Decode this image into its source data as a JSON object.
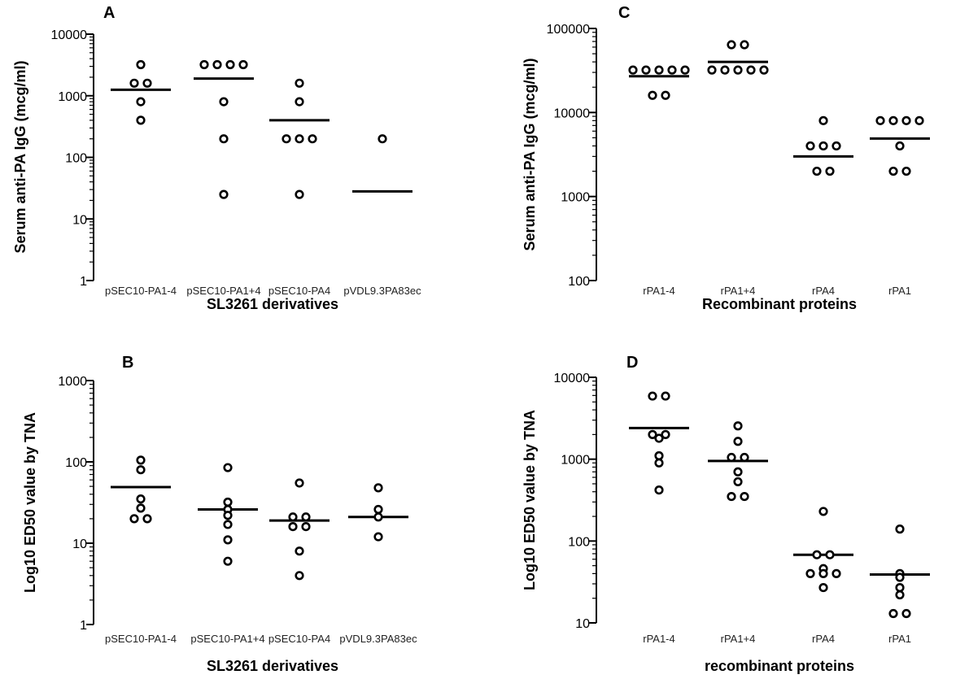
{
  "chart_data": [
    {
      "panel": "A",
      "type": "scatter",
      "ylabel": "Serum anti-PA IgG (mcg/ml)",
      "xlabel": "SL3261 derivatives",
      "yscale": "log",
      "ylim": [
        1,
        10000
      ],
      "yticks": [
        "1",
        "10",
        "100",
        "1000",
        "10000"
      ],
      "categories": [
        "pSEC10-PA1-4",
        "pSEC10-PA1+4",
        "pSEC10-PA4",
        "pVDL9.3PA83ec"
      ],
      "points": [
        [
          3200,
          1600,
          1600,
          800,
          400
        ],
        [
          3200,
          3200,
          3200,
          3200,
          800,
          200,
          25
        ],
        [
          1600,
          800,
          200,
          200,
          200,
          25
        ],
        [
          200
        ]
      ],
      "medians": [
        1250,
        1900,
        400,
        28
      ]
    },
    {
      "panel": "B",
      "type": "scatter",
      "ylabel": "Log10 ED50 value by TNA",
      "xlabel": "SL3261 derivatives",
      "yscale": "log",
      "ylim": [
        1,
        1000
      ],
      "yticks": [
        "1",
        "10",
        "100",
        "1000"
      ],
      "categories": [
        "pSEC10-PA1-4",
        "pSEC10-PA1+4",
        "pSEC10-PA4",
        "pVDL9.3PA83ec"
      ],
      "points": [
        [
          105,
          80,
          35,
          27,
          20,
          20
        ],
        [
          85,
          32,
          26,
          22,
          17,
          11,
          6
        ],
        [
          55,
          21,
          21,
          16,
          16,
          8,
          4
        ],
        [
          48,
          26,
          21,
          12
        ]
      ],
      "medians": [
        49,
        26,
        19,
        21
      ]
    },
    {
      "panel": "C",
      "type": "scatter",
      "ylabel": "Serum anti-PA IgG (mcg/ml)",
      "xlabel": "Recombinant proteins",
      "yscale": "log",
      "ylim": [
        100,
        100000
      ],
      "yticks": [
        "100",
        "1000",
        "10000",
        "100000"
      ],
      "categories": [
        "rPA1-4",
        "rPA1+4",
        "rPA4",
        "rPA1"
      ],
      "points": [
        [
          32000,
          32000,
          32000,
          32000,
          32000,
          16000,
          16000
        ],
        [
          64000,
          64000,
          32000,
          32000,
          32000,
          32000,
          32000
        ],
        [
          8000,
          4000,
          4000,
          4000,
          2000,
          2000
        ],
        [
          8000,
          8000,
          8000,
          8000,
          4000,
          2000,
          2000
        ]
      ],
      "medians": [
        27000,
        40000,
        3000,
        4900
      ]
    },
    {
      "panel": "D",
      "type": "scatter",
      "ylabel": "Log10 ED50 value by TNA",
      "xlabel": "recombinant proteins",
      "yscale": "log",
      "ylim": [
        10,
        10000
      ],
      "yticks": [
        "10",
        "100",
        "1000",
        "10000"
      ],
      "categories": [
        "rPA1-4",
        "rPA1+4",
        "rPA4",
        "rPA1"
      ],
      "points": [
        [
          5900,
          5400,
          2000,
          1900,
          1800,
          1100,
          900,
          420
        ],
        [
          2550,
          1650,
          1050,
          1000,
          700,
          530,
          350,
          350
        ],
        [
          230,
          68,
          68,
          46,
          40,
          40,
          40,
          27
        ],
        [
          140,
          40,
          36,
          27,
          22,
          13,
          13
        ]
      ],
      "medians": [
        2400,
        950,
        68,
        39
      ]
    }
  ]
}
